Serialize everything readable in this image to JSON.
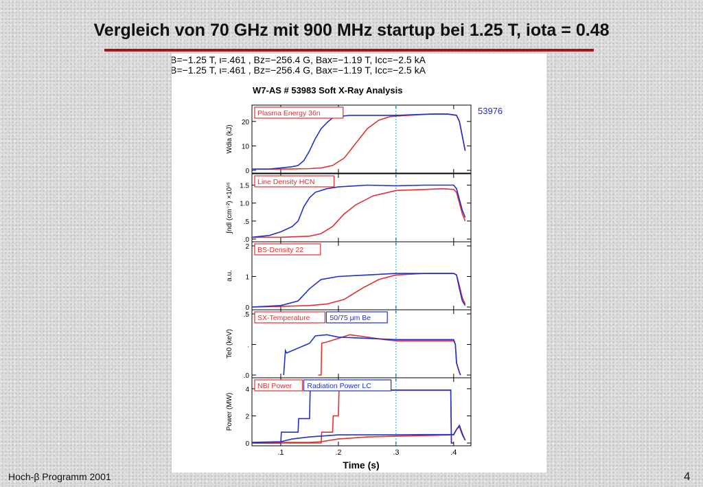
{
  "slide": {
    "title": "Vergleich von 70 GHz mit 900 MHz startup bei 1.25 T, iota = 0.48",
    "footer": "Hoch-β Programm 2001",
    "page_number": "4"
  },
  "figure": {
    "header_line_1": "B=−1.25 T,  ι=.461   ,  Bz=−256.4 G,  Bax=−1.19  T,  Icc=−2.5   kA",
    "header_line_2": "B=−1.25 T,  ι=.461   ,  Bz=−256.4 G,  Bax=−1.19  T,  Icc=−2.5   kA",
    "plot_title": "W7-AS # 53983  Soft X-Ray Analysis",
    "comparison_shot": "53976",
    "marker_time": 0.3
  },
  "colors": {
    "red_series": "#e03030",
    "blue_series": "#2030c8",
    "marker": "#40b0e0",
    "accent": "#a01818"
  },
  "chart_data": {
    "type": "line",
    "xlabel": "Time (s)",
    "xlim": [
      0.05,
      0.43
    ],
    "xticks": [
      0.1,
      0.2,
      0.3,
      0.4
    ],
    "xtick_labels": [
      ".1",
      ".2",
      ".3",
      ".4"
    ],
    "panels": [
      {
        "label": "Plasma Energy  36n",
        "label2": "",
        "ylabel": "Wdia (kJ)",
        "ylim": [
          0,
          25
        ],
        "yticks": [
          0,
          10,
          20
        ],
        "ytick_labels": [
          "0",
          "10",
          "20"
        ],
        "series": [
          {
            "color": "red",
            "x": [
              0.05,
              0.09,
              0.12,
              0.15,
              0.17,
              0.19,
              0.21,
              0.23,
              0.25,
              0.27,
              0.29,
              0.32,
              0.36,
              0.39,
              0.405,
              0.41,
              0.415,
              0.42
            ],
            "y": [
              0.5,
              0.5,
              0.6,
              0.7,
              1,
              2,
              5,
              11,
              17,
              20.5,
              22,
              22.5,
              23,
              23,
              22.5,
              20,
              14,
              8
            ]
          },
          {
            "color": "blue",
            "x": [
              0.05,
              0.08,
              0.1,
              0.12,
              0.13,
              0.14,
              0.15,
              0.16,
              0.17,
              0.18,
              0.19,
              0.2,
              0.22,
              0.25,
              0.3,
              0.36,
              0.39,
              0.405,
              0.41,
              0.415,
              0.42
            ],
            "y": [
              0.5,
              0.5,
              1,
              1.5,
              2,
              4,
              8,
              13,
              17,
              19.5,
              21.5,
              22,
              22.5,
              22.5,
              22.5,
              23,
              23,
              22.5,
              20,
              14,
              8
            ]
          }
        ]
      },
      {
        "label": "Line Density HCN",
        "label2": "",
        "ylabel": "∫ndl (cm⁻²)  ×10¹⁶",
        "ylim": [
          0,
          1.7
        ],
        "yticks": [
          0,
          0.5,
          1.0,
          1.5
        ],
        "ytick_labels": [
          ".0",
          ".5",
          "1.0",
          "1.5"
        ],
        "series": [
          {
            "color": "red",
            "x": [
              0.05,
              0.1,
              0.15,
              0.17,
              0.19,
              0.21,
              0.23,
              0.26,
              0.3,
              0.35,
              0.38,
              0.4,
              0.405,
              0.41,
              0.415,
              0.42
            ],
            "y": [
              0.05,
              0.05,
              0.08,
              0.15,
              0.35,
              0.7,
              0.95,
              1.2,
              1.35,
              1.38,
              1.4,
              1.38,
              1.3,
              1.0,
              0.7,
              0.5
            ]
          },
          {
            "color": "blue",
            "x": [
              0.05,
              0.08,
              0.1,
              0.12,
              0.13,
              0.14,
              0.15,
              0.16,
              0.18,
              0.2,
              0.25,
              0.3,
              0.35,
              0.4,
              0.405,
              0.41,
              0.415,
              0.42
            ],
            "y": [
              0.05,
              0.1,
              0.2,
              0.35,
              0.5,
              0.9,
              1.15,
              1.3,
              1.4,
              1.45,
              1.5,
              1.48,
              1.5,
              1.5,
              1.4,
              1.1,
              0.8,
              0.6
            ]
          }
        ]
      },
      {
        "label": "BS-Density 22",
        "label2": "",
        "ylabel": "a.u.",
        "ylim": [
          0,
          2
        ],
        "yticks": [
          0,
          1,
          2
        ],
        "ytick_labels": [
          "0",
          "1",
          "2"
        ],
        "series": [
          {
            "color": "red",
            "x": [
              0.05,
              0.1,
              0.15,
              0.18,
              0.21,
              0.24,
              0.27,
              0.3,
              0.35,
              0.4,
              0.405,
              0.41,
              0.415,
              0.42
            ],
            "y": [
              0,
              0.02,
              0.05,
              0.1,
              0.25,
              0.6,
              0.9,
              1.05,
              1.1,
              1.1,
              1.05,
              0.7,
              0.3,
              0.1
            ]
          },
          {
            "color": "blue",
            "x": [
              0.05,
              0.1,
              0.13,
              0.15,
              0.17,
              0.2,
              0.25,
              0.3,
              0.35,
              0.4,
              0.405,
              0.41,
              0.415,
              0.42
            ],
            "y": [
              0,
              0.05,
              0.2,
              0.6,
              0.9,
              1.0,
              1.05,
              1.1,
              1.1,
              1.1,
              1.05,
              0.6,
              0.2,
              0.05
            ]
          }
        ]
      },
      {
        "label": "SX-Temperature",
        "label2": "50/75  μm Be",
        "ylabel": "Te0 (keV)",
        "ylim": [
          0,
          0.5
        ],
        "yticks": [
          0,
          0.25,
          0.5
        ],
        "ytick_labels": [
          ".0",
          ".",
          ".5"
        ],
        "series": [
          {
            "color": "red",
            "x": [
              0.165,
              0.17,
              0.171,
              0.18,
              0.2,
              0.22,
              0.25,
              0.28,
              0.3,
              0.35,
              0.4,
              0.403,
              0.405,
              0.41,
              0.412
            ],
            "y": [
              0,
              0,
              0.26,
              0.27,
              0.3,
              0.33,
              0.31,
              0.29,
              0.28,
              0.28,
              0.28,
              0.25,
              0.1,
              0.02,
              0
            ]
          },
          {
            "color": "blue",
            "x": [
              0.105,
              0.108,
              0.11,
              0.12,
              0.13,
              0.14,
              0.15,
              0.16,
              0.18,
              0.2,
              0.25,
              0.3,
              0.35,
              0.4,
              0.403,
              0.405,
              0.41,
              0.412
            ],
            "y": [
              0,
              0.2,
              0.18,
              0.2,
              0.22,
              0.24,
              0.26,
              0.32,
              0.33,
              0.31,
              0.3,
              0.29,
              0.29,
              0.29,
              0.25,
              0.1,
              0.02,
              0
            ]
          }
        ]
      },
      {
        "label": "NBI Power",
        "label2": "Radiation Power LC",
        "ylabel": "Power (MW)",
        "ylim": [
          0,
          4.5
        ],
        "yticks": [
          0,
          2,
          4
        ],
        "ytick_labels": [
          "0",
          "2",
          "4"
        ],
        "series": [
          {
            "color": "red",
            "x": [
              0.05,
              0.17,
              0.171,
              0.18,
              0.19,
              0.191,
              0.2,
              0.201,
              0.395,
              0.396,
              0.4
            ],
            "y": [
              0,
              0,
              0.8,
              0.8,
              0.8,
              2.0,
              2.0,
              3.9,
              3.9,
              0,
              0
            ]
          },
          {
            "color": "blue",
            "x": [
              0.05,
              0.1,
              0.101,
              0.13,
              0.131,
              0.15,
              0.151,
              0.395,
              0.396,
              0.4
            ],
            "y": [
              0,
              0,
              0.8,
              0.8,
              1.8,
              1.8,
              3.9,
              3.9,
              0,
              0
            ]
          },
          {
            "color": "red",
            "x": [
              0.05,
              0.15,
              0.17,
              0.2,
              0.25,
              0.3,
              0.35,
              0.4,
              0.405,
              0.41,
              0.415,
              0.42
            ],
            "y": [
              0.05,
              0.05,
              0.1,
              0.3,
              0.45,
              0.5,
              0.55,
              0.6,
              1.0,
              1.2,
              0.6,
              0.2
            ]
          },
          {
            "color": "blue",
            "x": [
              0.05,
              0.1,
              0.12,
              0.15,
              0.2,
              0.25,
              0.3,
              0.35,
              0.4,
              0.405,
              0.41,
              0.415,
              0.42
            ],
            "y": [
              0.05,
              0.1,
              0.3,
              0.45,
              0.6,
              0.6,
              0.6,
              0.62,
              0.62,
              1.0,
              1.3,
              0.7,
              0.2
            ]
          }
        ]
      }
    ]
  }
}
